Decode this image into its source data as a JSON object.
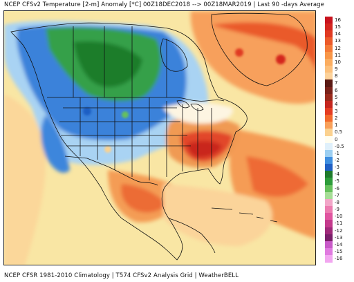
{
  "header": {
    "title": "NCEP CFSv2 Temperature [2-m] Anomaly  [*C] 00Z18DEC2018 --> 00Z18MAR2019 | Last 90 -days Average"
  },
  "footer": {
    "text": "NCEP CFSR 1981-2010 Climatology | T574 CFSv2 Analysis Grid | WeatherBELL"
  },
  "legend": {
    "items": [
      {
        "label": "16",
        "color": "#c8131e"
      },
      {
        "label": "15",
        "color": "#d4261f"
      },
      {
        "label": "14",
        "color": "#e03a22"
      },
      {
        "label": "13",
        "color": "#ec5a2a"
      },
      {
        "label": "12",
        "color": "#f47a38"
      },
      {
        "label": "11",
        "color": "#f89648"
      },
      {
        "label": "10",
        "color": "#fbad60"
      },
      {
        "label": "9",
        "color": "#fcc07c"
      },
      {
        "label": "8",
        "color": "#fdd29a"
      },
      {
        "label": "7",
        "color": "#5a1a14"
      },
      {
        "label": "6",
        "color": "#7a221a"
      },
      {
        "label": "5",
        "color": "#9a2a1c"
      },
      {
        "label": "4",
        "color": "#c4261e"
      },
      {
        "label": "3",
        "color": "#e43c22"
      },
      {
        "label": "2",
        "color": "#f26a2c"
      },
      {
        "label": "1",
        "color": "#f8a05a"
      },
      {
        "label": "0.5",
        "color": "#fbd18f"
      },
      {
        "label": "0",
        "color": "#fffdf0"
      },
      {
        "label": "-0.5",
        "color": "#dff0fb"
      },
      {
        "label": "-1",
        "color": "#9ccff2"
      },
      {
        "label": "-2",
        "color": "#3f8fe0"
      },
      {
        "label": "-3",
        "color": "#1f5fc4"
      },
      {
        "label": "-4",
        "color": "#1f7a2c"
      },
      {
        "label": "-5",
        "color": "#2d9c3a"
      },
      {
        "label": "-6",
        "color": "#66c15c"
      },
      {
        "label": "-7",
        "color": "#a6dd96"
      },
      {
        "label": "-8",
        "color": "#f2a6c8"
      },
      {
        "label": "-9",
        "color": "#ec7cb0"
      },
      {
        "label": "-10",
        "color": "#e055a0"
      },
      {
        "label": "-11",
        "color": "#c43a8c"
      },
      {
        "label": "-12",
        "color": "#a02a7a"
      },
      {
        "label": "-13",
        "color": "#7a1f6a"
      },
      {
        "label": "-14",
        "color": "#c85ac8"
      },
      {
        "label": "-15",
        "color": "#e07ae0"
      },
      {
        "label": "-16",
        "color": "#f2a6f0"
      }
    ]
  },
  "colors": {
    "ocean_warm": "#f8e29a",
    "deep_warm": "#f4a15a",
    "hot": "#e5442a",
    "very_hot": "#cc2a20",
    "neutral": "#fdf7e4",
    "light_cold": "#a8d2f2",
    "cold": "#3e86dc",
    "very_cold": "#2c5fc6",
    "green_cold": "#3aa045",
    "deep_green": "#1f7d2c",
    "border": "#111111"
  }
}
